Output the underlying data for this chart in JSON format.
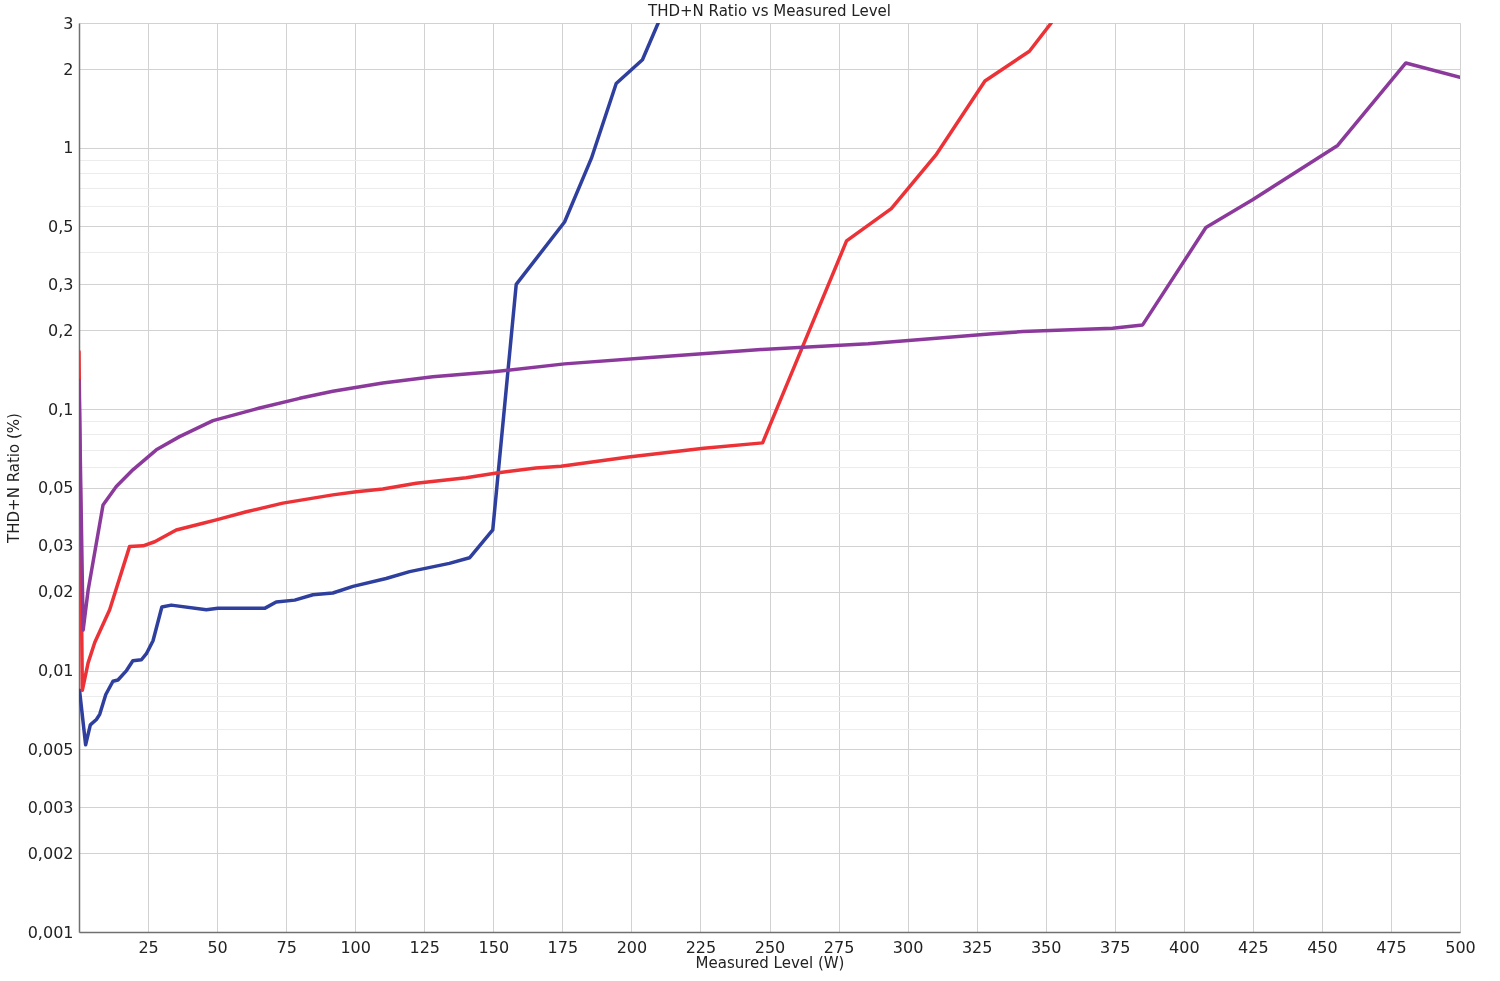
{
  "chart_data": {
    "type": "line",
    "title": "THD+N Ratio vs Measured Level",
    "xlabel": "Measured Level (W)",
    "ylabel": "THD+N Ratio (%)",
    "log": "y",
    "grid": true,
    "line_style": "solid",
    "xlim": [
      0,
      500
    ],
    "xticks": [
      25,
      50,
      75,
      100,
      125,
      150,
      175,
      200,
      225,
      250,
      275,
      300,
      325,
      350,
      375,
      400,
      425,
      450,
      475,
      500
    ],
    "ylim": [
      0.001,
      3
    ],
    "yticks": [
      {
        "value": 0.001,
        "label": "0,001"
      },
      {
        "value": 0.002,
        "label": "0,002"
      },
      {
        "value": 0.003,
        "label": "0,003"
      },
      {
        "value": 0.004,
        "label": null
      },
      {
        "value": 0.005,
        "label": "0,005"
      },
      {
        "value": 0.006,
        "label": null
      },
      {
        "value": 0.007,
        "label": null
      },
      {
        "value": 0.008,
        "label": null
      },
      {
        "value": 0.009,
        "label": null
      },
      {
        "value": 0.01,
        "label": "0,01"
      },
      {
        "value": 0.02,
        "label": "0,02"
      },
      {
        "value": 0.03,
        "label": "0,03"
      },
      {
        "value": 0.04,
        "label": null
      },
      {
        "value": 0.05,
        "label": "0,05"
      },
      {
        "value": 0.06,
        "label": null
      },
      {
        "value": 0.07,
        "label": null
      },
      {
        "value": 0.08,
        "label": null
      },
      {
        "value": 0.09,
        "label": null
      },
      {
        "value": 0.1,
        "label": "0,1"
      },
      {
        "value": 0.2,
        "label": "0,2"
      },
      {
        "value": 0.3,
        "label": "0,3"
      },
      {
        "value": 0.4,
        "label": null
      },
      {
        "value": 0.5,
        "label": "0,5"
      },
      {
        "value": 0.6,
        "label": null
      },
      {
        "value": 0.7,
        "label": null
      },
      {
        "value": 0.8,
        "label": null
      },
      {
        "value": 0.9,
        "label": null
      },
      1,
      2,
      3
    ],
    "series": [
      {
        "color": "#2f3f9e",
        "x": [
          0.2,
          2.4,
          4.1,
          6.3,
          7.5,
          9.7,
          12.3,
          14.1,
          17.2,
          19.5,
          22.6,
          24.4,
          26.8,
          30.0,
          33.4,
          46.1,
          50.3,
          67.2,
          71.4,
          78.1,
          84.7,
          91.9,
          99.2,
          111.2,
          119.7,
          134.1,
          141.4,
          149.8,
          158.3,
          175.8,
          185.5,
          194.5,
          204.0,
          209.7
        ],
        "values": [
          0.0084,
          0.0052,
          0.0062,
          0.0065,
          0.0068,
          0.0081,
          0.0091,
          0.0092,
          0.01,
          0.0109,
          0.011,
          0.0116,
          0.013,
          0.0175,
          0.0178,
          0.0171,
          0.0173,
          0.0173,
          0.0183,
          0.0186,
          0.0195,
          0.0198,
          0.021,
          0.0225,
          0.0239,
          0.0257,
          0.027,
          0.0345,
          0.3,
          0.52,
          0.91,
          1.76,
          2.17,
          3.0
        ]
      },
      {
        "color": "#ec3237",
        "x": [
          0,
          1.2,
          3.3,
          5.7,
          11.1,
          18.3,
          23.2,
          27.4,
          35.2,
          44.9,
          49.7,
          60.6,
          73.8,
          91.9,
          100.4,
          110.0,
          122.1,
          140.2,
          151.2,
          165.4,
          174.5,
          199.0,
          226.2,
          247.5,
          277.9,
          294.1,
          310.2,
          328.0,
          344.1,
          352.0
        ],
        "values": [
          0.166,
          0.0084,
          0.0107,
          0.0128,
          0.0171,
          0.0298,
          0.03,
          0.0311,
          0.0345,
          0.0366,
          0.0377,
          0.0405,
          0.0437,
          0.047,
          0.0483,
          0.0495,
          0.0521,
          0.0547,
          0.057,
          0.0596,
          0.0605,
          0.0656,
          0.0709,
          0.0743,
          0.44,
          0.585,
          0.936,
          1.8,
          2.34,
          3.0
        ]
      },
      {
        "color": "#8b3a9c",
        "x": [
          0,
          1.5,
          3.3,
          8.7,
          13.5,
          19.5,
          28.0,
          36.4,
          48.5,
          65.4,
          79.9,
          91.9,
          110.0,
          128.1,
          150.0,
          175.8,
          208.1,
          246.9,
          285.7,
          329.6,
          341.7,
          374.2,
          385.1,
          408.0,
          424.9,
          455.7,
          480.4,
          500
        ],
        "values": [
          0.129,
          0.0143,
          0.0203,
          0.043,
          0.0506,
          0.0586,
          0.0699,
          0.0785,
          0.0904,
          0.101,
          0.11,
          0.117,
          0.126,
          0.133,
          0.139,
          0.149,
          0.158,
          0.169,
          0.178,
          0.194,
          0.198,
          0.204,
          0.21,
          0.495,
          0.632,
          1.02,
          2.11,
          1.86
        ]
      }
    ]
  }
}
